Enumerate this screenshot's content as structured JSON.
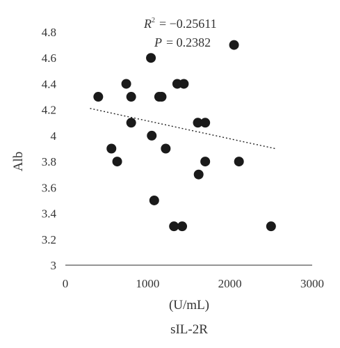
{
  "chart_data": {
    "type": "scatter",
    "xlabel": "(U/mL)",
    "xlabel_sub": "sIL-2R",
    "ylabel": "Alb",
    "xlim": [
      0,
      3000
    ],
    "ylim": [
      3,
      4.8
    ],
    "x_ticks": [
      0,
      1000,
      2000,
      3000
    ],
    "y_ticks": [
      3,
      3.2,
      3.4,
      3.6,
      3.8,
      4,
      4.2,
      4.4,
      4.6,
      4.8
    ],
    "x_tick_labels": [
      "0",
      "1000",
      "2000",
      "3000"
    ],
    "y_tick_labels": [
      "3",
      "3.2",
      "3.4",
      "3.6",
      "3.8",
      "4",
      "4.2",
      "4.4",
      "4.6",
      "4.8"
    ],
    "grid": false,
    "marker_color": "#1a1a1a",
    "trend_color": "#222222",
    "annotations": {
      "r2_symbol": "R",
      "r2_exp": "2",
      "r2_value": "= −0.25611",
      "p_symbol": "P",
      "p_value": "= 0.2382"
    },
    "series": [
      {
        "points": [
          {
            "x": 400,
            "y": 4.3
          },
          {
            "x": 560,
            "y": 3.9
          },
          {
            "x": 630,
            "y": 3.8
          },
          {
            "x": 740,
            "y": 4.4
          },
          {
            "x": 800,
            "y": 4.3
          },
          {
            "x": 800,
            "y": 4.1
          },
          {
            "x": 1040,
            "y": 4.6
          },
          {
            "x": 1050,
            "y": 4.0
          },
          {
            "x": 1080,
            "y": 3.5
          },
          {
            "x": 1140,
            "y": 4.3
          },
          {
            "x": 1170,
            "y": 4.3
          },
          {
            "x": 1220,
            "y": 3.9
          },
          {
            "x": 1320,
            "y": 3.3
          },
          {
            "x": 1360,
            "y": 4.4
          },
          {
            "x": 1420,
            "y": 3.3
          },
          {
            "x": 1440,
            "y": 4.4
          },
          {
            "x": 1610,
            "y": 4.1
          },
          {
            "x": 1620,
            "y": 3.7
          },
          {
            "x": 1700,
            "y": 4.1
          },
          {
            "x": 1700,
            "y": 3.8
          },
          {
            "x": 2050,
            "y": 4.7
          },
          {
            "x": 2110,
            "y": 3.8
          },
          {
            "x": 2500,
            "y": 3.3
          }
        ]
      }
    ],
    "trendline": {
      "x": [
        300,
        2550
      ],
      "y": [
        4.21,
        3.9
      ]
    }
  }
}
